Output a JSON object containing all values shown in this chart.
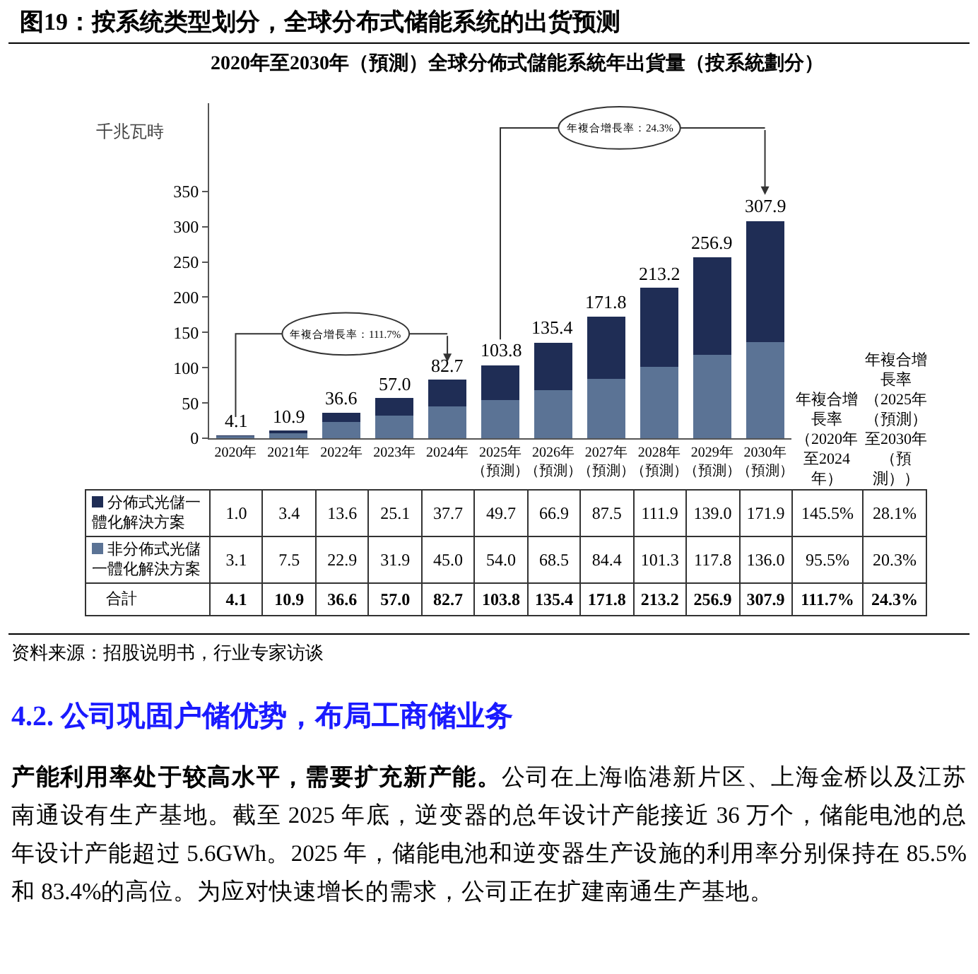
{
  "chart_data": {
    "type": "bar",
    "stacked": true,
    "title": "图19：按系统类型划分，全球分布式储能系统的出货预测",
    "subtitle": "2020年至2030年（預測）全球分佈式儲能系統年出貨量（按系統劃分）",
    "ylabel": "千兆瓦時",
    "categories": [
      "2020年",
      "2021年",
      "2022年",
      "2023年",
      "2024年",
      "2025年（預測）",
      "2026年（預測）",
      "2027年（預測）",
      "2028年（預測）",
      "2029年（預測）",
      "2030年（預測）"
    ],
    "legend": "bottom",
    "series": [
      {
        "name": "非分佈式光儲一體化解決方案",
        "color": "#5b7395",
        "values": [
          3.1,
          7.5,
          22.9,
          31.9,
          45.0,
          54.0,
          68.5,
          84.4,
          101.3,
          117.8,
          136.0
        ],
        "value_labels": [
          "3.1",
          "7.5",
          "22.9",
          "31.9",
          "45.0",
          "54.0",
          "68.5",
          "84.4",
          "101.3",
          "117.8",
          "136.0"
        ]
      },
      {
        "name": "分佈式光儲一體化解決方案",
        "color": "#1f2d55",
        "values": [
          1.0,
          3.4,
          13.6,
          25.1,
          37.7,
          49.7,
          66.9,
          87.5,
          111.9,
          139.0,
          171.9
        ],
        "value_labels": [
          "1.0",
          "3.4",
          "13.6",
          "25.1",
          "37.7",
          "49.7",
          "66.9",
          "87.5",
          "111.9",
          "139.0",
          "171.9"
        ]
      }
    ],
    "totals": [
      "4.1",
      "10.9",
      "36.6",
      "57.0",
      "82.7",
      "103.8",
      "135.4",
      "171.8",
      "213.2",
      "256.9",
      "307.9"
    ],
    "ylim": [
      0,
      475
    ],
    "yticks": [
      0,
      50,
      100,
      150,
      200,
      250,
      300,
      350
    ],
    "grid": false,
    "annotations": [
      "年複合增長率：111.7%",
      "年複合增長率：24.3%",
      "年複合增長率（2020年至2024年）",
      "年複合增長率（2025年（預測）至2030年（預測））",
      "145.5%",
      "95.5%",
      "111.7%",
      "28.1%",
      "20.3%",
      "24.3%",
      "合計",
      "资料来源：招股说明书，行业专家访谈",
      "4.2.  公司巩固户储优势，布局工商储业务",
      "产能利用率处于较高水平，需要扩充新产能。",
      "公司在上海临港新片区、上海金桥以及江苏南通设有生产基地。截至 2025 年底，逆变器的总年设计产能接近 36 万个，储能电池的总年设计产能超过 5.6GWh。2025 年，储能电池和逆变器生产设施的利用率分别保持在 85.5%和 83.4%的高位。为应对快速增长的需求，公司正在扩建南通生产基地。"
    ]
  }
}
